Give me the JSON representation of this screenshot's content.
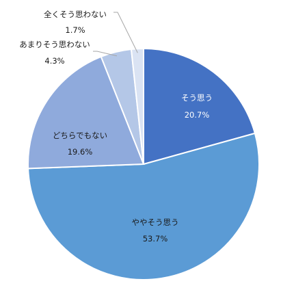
{
  "chart_data": {
    "type": "pie",
    "title": "",
    "start": "top, clockwise",
    "slices": [
      {
        "label": "そう思う",
        "value": 20.7,
        "value_label": "20.7%",
        "color": "#4472C4",
        "label_color": "#ffffff"
      },
      {
        "label": "ややそう思う",
        "value": 53.7,
        "value_label": "53.7%",
        "color": "#5B9BD5",
        "label_color": "#1a1a1a"
      },
      {
        "label": "どちらでもない",
        "value": 19.6,
        "value_label": "19.6%",
        "color": "#8FAADC",
        "label_color": "#1a1a1a"
      },
      {
        "label": "あまりそう思わない",
        "value": 4.3,
        "value_label": "4.3%",
        "color": "#B4C7E7",
        "label_color": "#1a1a1a"
      },
      {
        "label": "全くそう思わない",
        "value": 1.7,
        "value_label": "1.7%",
        "color": "#DAE3F3",
        "label_color": "#1a1a1a"
      }
    ]
  }
}
